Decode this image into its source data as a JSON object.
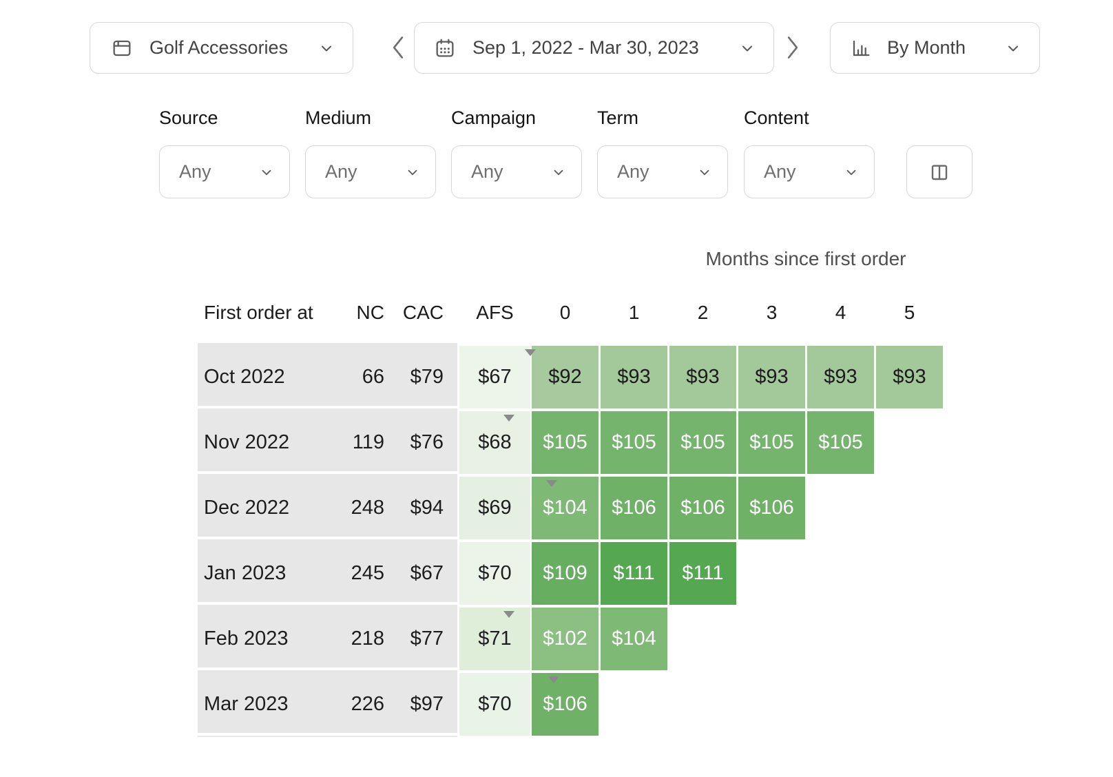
{
  "toolbar": {
    "project": {
      "label": "Golf Accessories",
      "icon": "window-icon"
    },
    "date_range": {
      "label": "Sep 1, 2022 - Mar 30, 2023",
      "icon": "calendar-icon"
    },
    "granularity": {
      "label": "By Month",
      "icon": "bar-chart-icon"
    },
    "prev_icon": "chevron-left-icon",
    "next_icon": "chevron-right-icon"
  },
  "filters": [
    {
      "label": "Source",
      "value": "Any"
    },
    {
      "label": "Medium",
      "value": "Any"
    },
    {
      "label": "Campaign",
      "value": "Any"
    },
    {
      "label": "Term",
      "value": "Any"
    },
    {
      "label": "Content",
      "value": "Any"
    }
  ],
  "columns_button": {
    "icon": "split-columns-icon"
  },
  "chart_data": {
    "type": "heatmap",
    "title": "Months since first order",
    "columns": [
      "First order at",
      "NC",
      "CAC",
      "AFS",
      "0",
      "1",
      "2",
      "3",
      "4",
      "5"
    ],
    "rows": [
      {
        "first_order_at": "Oct 2022",
        "nc": 66,
        "cac": "$79",
        "afs": "$67",
        "afs_bg": "#edf4ea",
        "ltv": [
          "$92",
          "$93",
          "$93",
          "$93",
          "$93",
          "$93"
        ],
        "marker": {
          "col": "afs",
          "offset": 1.0
        }
      },
      {
        "first_order_at": "Nov 2022",
        "nc": 119,
        "cac": "$76",
        "afs": "$68",
        "afs_bg": "#e9f1e5",
        "ltv": [
          "$105",
          "$105",
          "$105",
          "$105",
          "$105"
        ],
        "marker": {
          "col": "afs",
          "offset": 0.7
        }
      },
      {
        "first_order_at": "Dec 2022",
        "nc": 248,
        "cac": "$94",
        "afs": "$69",
        "afs_bg": "#e6f0e2",
        "ltv": [
          "$104",
          "$106",
          "$106",
          "$106"
        ],
        "marker": {
          "col": "m0",
          "offset": 0.3
        }
      },
      {
        "first_order_at": "Jan 2023",
        "nc": 245,
        "cac": "$67",
        "afs": "$70",
        "afs_bg": "#ecf4e9",
        "ltv": [
          "$109",
          "$111",
          "$111"
        ],
        "marker": null
      },
      {
        "first_order_at": "Feb 2023",
        "nc": 218,
        "cac": "$77",
        "afs": "$71",
        "afs_bg": "#deeed9",
        "ltv": [
          "$102",
          "$104"
        ],
        "marker": {
          "col": "afs",
          "offset": 0.7
        }
      },
      {
        "first_order_at": "Mar 2023",
        "nc": 226,
        "cac": "$97",
        "afs": "$70",
        "afs_bg": "#eaf3e7",
        "ltv": [
          "$106"
        ],
        "marker": {
          "col": "m0",
          "offset": 0.33
        }
      }
    ],
    "value_colors": {
      "$92": "#a6ca9d",
      "$93": "#a3c89a",
      "$102": "#8cc083",
      "$104": "#7eb975",
      "$105": "#74b46c",
      "$106": "#6fb267",
      "$109": "#67ae60",
      "$111": "#55a751"
    },
    "dark_text_values": [
      "$92",
      "$93"
    ],
    "marker_color": "#8a8a8a"
  }
}
